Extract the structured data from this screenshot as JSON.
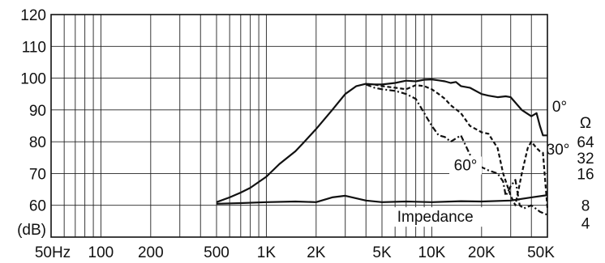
{
  "chart_data": {
    "type": "line",
    "x_scale": "log",
    "xlim": [
      50,
      50000
    ],
    "ylim": [
      50,
      120
    ],
    "grid": true,
    "y_ticks": [
      {
        "value": 120,
        "label": "120"
      },
      {
        "value": 110,
        "label": "110"
      },
      {
        "value": 100,
        "label": "100"
      },
      {
        "value": 90,
        "label": "90"
      },
      {
        "value": 80,
        "label": "80"
      },
      {
        "value": 70,
        "label": "70"
      },
      {
        "value": 60,
        "label": "60"
      }
    ],
    "y_unit_label": "(dB)",
    "x_ticks": [
      {
        "value": 50,
        "label": "50Hz"
      },
      {
        "value": 100,
        "label": "100"
      },
      {
        "value": 200,
        "label": "200"
      },
      {
        "value": 500,
        "label": "500"
      },
      {
        "value": 1000,
        "label": "1K"
      },
      {
        "value": 2000,
        "label": "2K"
      },
      {
        "value": 5000,
        "label": "5K"
      },
      {
        "value": 10000,
        "label": "10K"
      },
      {
        "value": 20000,
        "label": "20K"
      },
      {
        "value": 50000,
        "label": "50K"
      }
    ],
    "impedance_axis": {
      "unit": "Ω",
      "ticks": [
        {
          "value": 64,
          "label": "64",
          "db": 80
        },
        {
          "value": 32,
          "label": "32",
          "db": 75
        },
        {
          "value": 16,
          "label": "16",
          "db": 70
        },
        {
          "value": 8,
          "label": "8",
          "db": 60
        },
        {
          "value": 4,
          "label": "4",
          "db": 54.5
        }
      ]
    },
    "series": [
      {
        "name": "0°",
        "style": "solid",
        "x": [
          500,
          600,
          700,
          800,
          1000,
          1200,
          1500,
          1700,
          2000,
          2500,
          3000,
          3500,
          4000,
          4500,
          5000,
          6000,
          7000,
          8000,
          9000,
          10000,
          11000,
          12000,
          13000,
          14000,
          15000,
          17000,
          20000,
          22000,
          25000,
          28000,
          30000,
          35000,
          40000,
          43000,
          45000,
          47000,
          50000
        ],
        "y": [
          61,
          62.5,
          64,
          65.5,
          69,
          73,
          77,
          80,
          84,
          90,
          95,
          97.5,
          98.2,
          98,
          98,
          98.5,
          99.2,
          99,
          99.5,
          99.6,
          99.3,
          99,
          98.5,
          98.8,
          97.5,
          97,
          95,
          94.5,
          94,
          94.3,
          94,
          90,
          88,
          89,
          85,
          82,
          82
        ]
      },
      {
        "name": "30°",
        "style": "dashed",
        "x": [
          4500,
          5000,
          6000,
          7000,
          8000,
          9000,
          10000,
          11000,
          12000,
          13000,
          15000,
          17000,
          20000,
          22000,
          25000,
          27000,
          30000,
          32000,
          35000,
          38000,
          40000,
          43000,
          45000,
          47000,
          50000
        ],
        "y": [
          98,
          97.5,
          97,
          96.5,
          97.8,
          97.5,
          96.5,
          95,
          93.5,
          91.5,
          89,
          85,
          83,
          82.5,
          78,
          70,
          63,
          60,
          70,
          78,
          80,
          78,
          77,
          76.5,
          59
        ]
      },
      {
        "name": "60°",
        "style": "dashdot",
        "x": [
          4000,
          4500,
          5000,
          6000,
          7000,
          8000,
          9000,
          10000,
          11000,
          12000,
          13000,
          15000,
          17000,
          20000,
          22000,
          25000,
          27000,
          28000,
          30000,
          32000,
          34000,
          36000,
          40000,
          45000,
          50000
        ],
        "y": [
          98,
          97,
          96.5,
          96,
          95,
          93.5,
          89,
          85,
          82,
          81.5,
          80,
          82,
          76,
          72,
          71,
          70,
          67.5,
          63,
          66,
          68,
          60,
          59,
          60,
          58,
          57
        ]
      },
      {
        "name": "Impedance",
        "style": "solid",
        "x": [
          500,
          700,
          1000,
          1500,
          2000,
          2500,
          3000,
          4000,
          5000,
          7000,
          10000,
          15000,
          20000,
          30000,
          40000,
          50000
        ],
        "y": [
          60.5,
          60.7,
          61,
          61.2,
          61,
          62.5,
          63,
          61.5,
          61,
          61.2,
          61,
          61.3,
          61.2,
          61.5,
          62.5,
          63.2
        ]
      }
    ],
    "annotations": [
      {
        "text": "0°",
        "x": 43000,
        "y": 85
      },
      {
        "text": "30°",
        "x": 33000,
        "y": 76
      },
      {
        "text": "60°",
        "x": 16000,
        "y": 71
      },
      {
        "text": "Impedance",
        "x": 10500,
        "y": 54.8
      }
    ]
  }
}
